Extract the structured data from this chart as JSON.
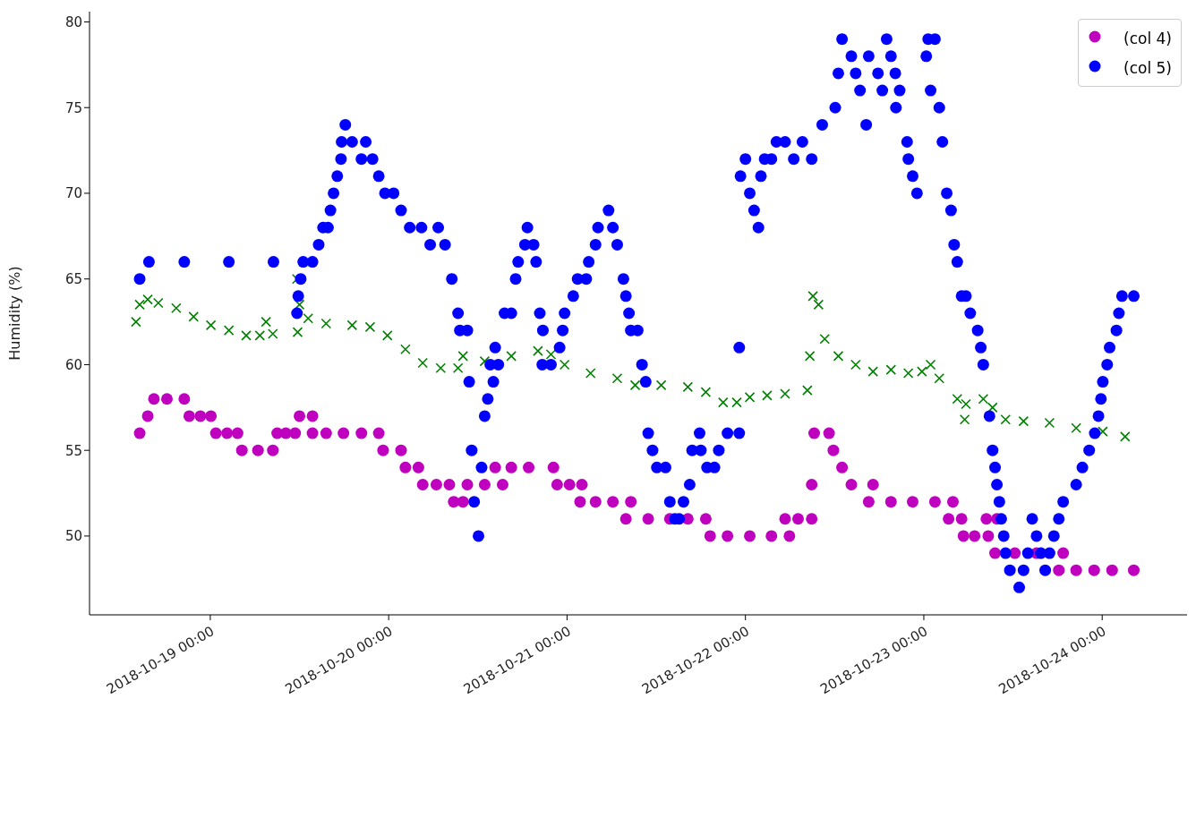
{
  "chart_data": {
    "type": "scatter",
    "ylabel": "Humidity (%)",
    "xlim": [
      "2018-10-18T07:45",
      "2018-10-24T11:25"
    ],
    "xticks": [
      {
        "value": "2018-10-19",
        "label": "2018-10-19 00:00"
      },
      {
        "value": "2018-10-20",
        "label": "2018-10-20 00:00"
      },
      {
        "value": "2018-10-21",
        "label": "2018-10-21 00:00"
      },
      {
        "value": "2018-10-22",
        "label": "2018-10-22 00:00"
      },
      {
        "value": "2018-10-23",
        "label": "2018-10-23 00:00"
      },
      {
        "value": "2018-10-24",
        "label": "2018-10-24 00:00"
      }
    ],
    "ylim": [
      45.4,
      80.6
    ],
    "yticks": [
      50,
      55,
      60,
      65,
      70,
      75,
      80
    ],
    "grid": false,
    "legend": "top right",
    "series": [
      {
        "marker": "cross",
        "color": "#008000",
        "x": [
          "2018-10-18T14:00",
          "2018-10-18T14:30",
          "2018-10-18T15:35",
          "2018-10-18T17:00",
          "2018-10-18T19:25",
          "2018-10-18T21:45",
          "2018-10-19T00:05",
          "2018-10-19T02:30",
          "2018-10-19T04:50",
          "2018-10-19T06:40",
          "2018-10-19T07:30",
          "2018-10-19T08:25",
          "2018-10-19T11:45",
          "2018-10-19T11:40",
          "2018-10-19T12:00",
          "2018-10-19T13:10",
          "2018-10-19T15:35",
          "2018-10-19T19:05",
          "2018-10-19T21:30",
          "2018-10-19T23:50",
          "2018-10-20T02:15",
          "2018-10-20T04:35",
          "2018-10-20T07:00",
          "2018-10-20T09:20",
          "2018-10-20T10:00",
          "2018-10-20T12:55",
          "2018-10-20T16:30",
          "2018-10-20T20:05",
          "2018-10-20T21:50",
          "2018-10-20T23:40",
          "2018-10-21T03:10",
          "2018-10-21T06:45",
          "2018-10-21T09:10",
          "2018-10-21T12:40",
          "2018-10-21T16:15",
          "2018-10-21T18:40",
          "2018-10-21T21:00",
          "2018-10-21T22:50",
          "2018-10-22T00:35",
          "2018-10-22T02:55",
          "2018-10-22T05:20",
          "2018-10-22T08:20",
          "2018-10-22T08:40",
          "2018-10-22T09:05",
          "2018-10-22T09:50",
          "2018-10-22T10:40",
          "2018-10-22T12:30",
          "2018-10-22T14:50",
          "2018-10-22T17:10",
          "2018-10-22T19:35",
          "2018-10-22T21:55",
          "2018-10-22T23:45",
          "2018-10-23T00:55",
          "2018-10-23T02:05",
          "2018-10-23T04:30",
          "2018-10-23T05:30",
          "2018-10-23T05:40",
          "2018-10-23T08:00",
          "2018-10-23T09:15",
          "2018-10-23T11:00",
          "2018-10-23T13:25",
          "2018-10-23T16:55",
          "2018-10-23T20:30",
          "2018-10-24T00:05",
          "2018-10-24T03:05"
        ],
        "values": [
          62.5,
          63.5,
          63.8,
          63.6,
          63.3,
          62.8,
          62.3,
          62.0,
          61.7,
          61.7,
          62.5,
          61.8,
          61.9,
          65,
          63.5,
          62.7,
          62.4,
          62.3,
          62.2,
          61.7,
          60.9,
          60.1,
          59.8,
          59.8,
          60.5,
          60.2,
          60.5,
          60.8,
          60.6,
          60.0,
          59.5,
          59.2,
          58.8,
          58.8,
          58.7,
          58.4,
          57.8,
          57.8,
          58.1,
          58.2,
          58.3,
          58.5,
          60.5,
          64,
          63.5,
          61.5,
          60.5,
          60.0,
          59.6,
          59.7,
          59.5,
          59.6,
          60,
          59.2,
          58,
          56.8,
          57.7,
          58,
          57.5,
          56.8,
          56.7,
          56.6,
          56.3,
          56.1,
          55.8
        ]
      },
      {
        "marker": "circle",
        "name": "(col 4)",
        "color": "#bf00bf",
        "x": [
          "2018-10-18T14:30",
          "2018-10-18T15:35",
          "2018-10-18T16:25",
          "2018-10-18T18:10",
          "2018-10-18T20:30",
          "2018-10-18T21:10",
          "2018-10-18T22:40",
          "2018-10-19T00:05",
          "2018-10-19T00:45",
          "2018-10-19T02:15",
          "2018-10-19T03:40",
          "2018-10-19T04:15",
          "2018-10-19T06:25",
          "2018-10-19T08:25",
          "2018-10-19T09:00",
          "2018-10-19T10:10",
          "2018-10-19T11:25",
          "2018-10-19T12:00",
          "2018-10-19T13:45",
          "2018-10-19T13:45",
          "2018-10-19T15:35",
          "2018-10-19T17:55",
          "2018-10-19T20:20",
          "2018-10-19T22:40",
          "2018-10-19T23:15",
          "2018-10-20T01:40",
          "2018-10-20T02:15",
          "2018-10-20T04:00",
          "2018-10-20T04:35",
          "2018-10-20T06:25",
          "2018-10-20T08:10",
          "2018-10-20T08:45",
          "2018-10-20T10:00",
          "2018-10-20T10:35",
          "2018-10-20T12:55",
          "2018-10-20T15:20",
          "2018-10-20T14:20",
          "2018-10-20T16:30",
          "2018-10-20T18:50",
          "2018-10-20T22:10",
          "2018-10-20T22:40",
          "2018-10-21T00:20",
          "2018-10-21T02:00",
          "2018-10-21T01:45",
          "2018-10-21T03:50",
          "2018-10-21T06:10",
          "2018-10-21T08:35",
          "2018-10-21T07:55",
          "2018-10-21T10:55",
          "2018-10-21T13:50",
          "2018-10-21T16:15",
          "2018-10-21T18:40",
          "2018-10-21T19:15",
          "2018-10-21T21:35",
          "2018-10-22T00:35",
          "2018-10-22T03:30",
          "2018-10-22T05:55",
          "2018-10-22T05:20",
          "2018-10-22T07:05",
          "2018-10-22T08:55",
          "2018-10-22T08:55",
          "2018-10-22T09:15",
          "2018-10-22T11:15",
          "2018-10-22T11:50",
          "2018-10-22T13:00",
          "2018-10-22T14:15",
          "2018-10-22T17:10",
          "2018-10-22T16:35",
          "2018-10-22T19:35",
          "2018-10-22T22:30",
          "2018-10-23T01:30",
          "2018-10-23T03:55",
          "2018-10-23T03:20",
          "2018-10-23T05:05",
          "2018-10-23T05:20",
          "2018-10-23T06:50",
          "2018-10-23T08:40",
          "2018-10-23T08:25",
          "2018-10-23T09:50",
          "2018-10-23T09:35",
          "2018-10-23T12:15",
          "2018-10-23T15:10",
          "2018-10-23T18:45",
          "2018-10-23T18:10",
          "2018-10-23T20:30",
          "2018-10-23T22:55",
          "2018-10-24T01:20",
          "2018-10-24T04:15"
        ],
        "values": [
          56,
          57,
          58,
          58,
          58,
          57,
          57,
          57,
          56,
          56,
          56,
          55,
          55,
          55,
          56,
          56,
          56,
          57,
          57,
          56,
          56,
          56,
          56,
          56,
          55,
          55,
          54,
          54,
          53,
          53,
          53,
          52,
          52,
          53,
          53,
          53,
          54,
          54,
          54,
          54,
          53,
          53,
          53,
          52,
          52,
          52,
          52,
          51,
          51,
          51,
          51,
          51,
          50,
          50,
          50,
          50,
          50,
          51,
          51,
          51,
          53,
          56,
          56,
          55,
          54,
          53,
          53,
          52,
          52,
          52,
          52,
          52,
          51,
          51,
          50,
          50,
          50,
          51,
          51,
          49,
          49,
          49,
          49,
          48,
          48,
          48,
          48,
          48
        ]
      },
      {
        "marker": "circle",
        "name": "(col 5)",
        "color": "#0000ff",
        "x": [
          "2018-10-18T14:30",
          "2018-10-18T15:45",
          "2018-10-18T20:30",
          "2018-10-19T02:30",
          "2018-10-19T08:30",
          "2018-10-19T12:30",
          "2018-10-19T11:40",
          "2018-10-19T11:50",
          "2018-10-19T12:10",
          "2018-10-19T13:45",
          "2018-10-19T14:35",
          "2018-10-19T15:10",
          "2018-10-19T15:50",
          "2018-10-19T16:10",
          "2018-10-19T16:35",
          "2018-10-19T17:05",
          "2018-10-19T17:35",
          "2018-10-19T18:10",
          "2018-10-19T17:40",
          "2018-10-19T19:05",
          "2018-10-19T20:20",
          "2018-10-19T20:55",
          "2018-10-19T21:50",
          "2018-10-19T22:40",
          "2018-10-19T23:30",
          "2018-10-20T00:40",
          "2018-10-20T01:40",
          "2018-10-20T02:50",
          "2018-10-20T04:25",
          "2018-10-20T05:35",
          "2018-10-20T06:40",
          "2018-10-20T07:35",
          "2018-10-20T08:30",
          "2018-10-20T09:20",
          "2018-10-20T09:35",
          "2018-10-20T10:35",
          "2018-10-20T10:50",
          "2018-10-20T11:10",
          "2018-10-20T11:30",
          "2018-10-20T12:05",
          "2018-10-20T12:30",
          "2018-10-20T12:55",
          "2018-10-20T13:20",
          "2018-10-20T13:40",
          "2018-10-20T14:05",
          "2018-10-20T14:20",
          "2018-10-20T14:45",
          "2018-10-20T15:35",
          "2018-10-20T16:30",
          "2018-10-20T17:05",
          "2018-10-20T17:25",
          "2018-10-20T18:20",
          "2018-10-20T18:40",
          "2018-10-20T19:30",
          "2018-10-20T19:50",
          "2018-10-20T20:20",
          "2018-10-20T20:45",
          "2018-10-20T20:40",
          "2018-10-20T21:50",
          "2018-10-20T23:00",
          "2018-10-20T23:25",
          "2018-10-20T23:40",
          "2018-10-21T00:50",
          "2018-10-21T01:25",
          "2018-10-21T02:35",
          "2018-10-21T02:55",
          "2018-10-21T03:50",
          "2018-10-21T04:10",
          "2018-10-21T05:35",
          "2018-10-21T06:10",
          "2018-10-21T06:45",
          "2018-10-21T07:35",
          "2018-10-21T07:55",
          "2018-10-21T08:20",
          "2018-10-21T08:35",
          "2018-10-21T09:30",
          "2018-10-21T10:05",
          "2018-10-21T10:35",
          "2018-10-21T10:55",
          "2018-10-21T11:30",
          "2018-10-21T12:05",
          "2018-10-21T13:15",
          "2018-10-21T13:50",
          "2018-10-21T14:30",
          "2018-10-21T15:05",
          "2018-10-21T15:40",
          "2018-10-21T16:30",
          "2018-10-21T16:50",
          "2018-10-21T17:50",
          "2018-10-21T18:00",
          "2018-10-21T18:50",
          "2018-10-21T19:50",
          "2018-10-21T20:25",
          "2018-10-21T21:35",
          "2018-10-21T23:10",
          "2018-10-21T23:10",
          "2018-10-21T23:20",
          "2018-10-22T00:00",
          "2018-10-22T00:35",
          "2018-10-22T01:10",
          "2018-10-22T01:45",
          "2018-10-22T02:05",
          "2018-10-22T02:35",
          "2018-10-22T03:30",
          "2018-10-22T04:10",
          "2018-10-22T05:20",
          "2018-10-22T06:30",
          "2018-10-22T07:40",
          "2018-10-22T08:55",
          "2018-10-22T10:20",
          "2018-10-22T12:05",
          "2018-10-22T12:30",
          "2018-10-22T13:00",
          "2018-10-22T14:15",
          "2018-10-22T14:50",
          "2018-10-22T15:25",
          "2018-10-22T16:15",
          "2018-10-22T16:35",
          "2018-10-22T17:50",
          "2018-10-22T18:25",
          "2018-10-22T19:00",
          "2018-10-22T19:35",
          "2018-10-22T20:10",
          "2018-10-22T20:45",
          "2018-10-22T20:15",
          "2018-10-22T21:45",
          "2018-10-22T21:55",
          "2018-10-22T22:30",
          "2018-10-22T23:05",
          "2018-10-23T00:20",
          "2018-10-23T00:35",
          "2018-10-23T00:55",
          "2018-10-23T01:30",
          "2018-10-23T02:05",
          "2018-10-23T02:30",
          "2018-10-23T03:05",
          "2018-10-23T03:40",
          "2018-10-23T04:05",
          "2018-10-23T04:30",
          "2018-10-23T05:05",
          "2018-10-23T05:40",
          "2018-10-23T06:15",
          "2018-10-23T07:15",
          "2018-10-23T07:40",
          "2018-10-23T08:00",
          "2018-10-23T08:50",
          "2018-10-23T09:15",
          "2018-10-23T09:35",
          "2018-10-23T09:50",
          "2018-10-23T10:10",
          "2018-10-23T10:25",
          "2018-10-23T10:45",
          "2018-10-23T11:00",
          "2018-10-23T11:35",
          "2018-10-23T12:50",
          "2018-10-23T13:25",
          "2018-10-23T14:00",
          "2018-10-23T14:35",
          "2018-10-23T15:10",
          "2018-10-23T15:45",
          "2018-10-23T16:20",
          "2018-10-23T16:55",
          "2018-10-23T17:30",
          "2018-10-23T18:10",
          "2018-10-23T18:45",
          "2018-10-23T20:30",
          "2018-10-23T21:20",
          "2018-10-23T22:15",
          "2018-10-23T23:00",
          "2018-10-23T23:30",
          "2018-10-23T23:50",
          "2018-10-24T00:05",
          "2018-10-24T00:40",
          "2018-10-24T01:00",
          "2018-10-24T01:55",
          "2018-10-24T02:15",
          "2018-10-24T02:40",
          "2018-10-24T04:15"
        ],
        "values": [
          65,
          66,
          66,
          66,
          66,
          66,
          63,
          64,
          65,
          66,
          67,
          68,
          68,
          69,
          70,
          71,
          72,
          74,
          73,
          73,
          72,
          73,
          72,
          71,
          70,
          70,
          69,
          68,
          68,
          67,
          68,
          67,
          65,
          63,
          62,
          62,
          59,
          55,
          52,
          50,
          54,
          57,
          58,
          60,
          59,
          61,
          60,
          63,
          63,
          65,
          66,
          67,
          68,
          67,
          66,
          63,
          62,
          60,
          60,
          61,
          62,
          63,
          64,
          65,
          65,
          66,
          67,
          68,
          69,
          68,
          67,
          65,
          64,
          63,
          62,
          62,
          60,
          59,
          56,
          55,
          54,
          54,
          52,
          51,
          51,
          52,
          53,
          55,
          56,
          55,
          54,
          54,
          55,
          56,
          56,
          61,
          71,
          72,
          70,
          69,
          68,
          71,
          72,
          72,
          73,
          73,
          72,
          73,
          72,
          74,
          75,
          77,
          79,
          78,
          77,
          76,
          74,
          78,
          77,
          76,
          79,
          78,
          77,
          76,
          75,
          73,
          72,
          71,
          70,
          78,
          79,
          76,
          79,
          75,
          73,
          70,
          69,
          67,
          66,
          64,
          64,
          63,
          62,
          61,
          60,
          57,
          55,
          54,
          53,
          52,
          51,
          50,
          49,
          48,
          47,
          48,
          49,
          51,
          50,
          49,
          48,
          49,
          50,
          51,
          52,
          53,
          54,
          55,
          56,
          57,
          58,
          59,
          60,
          61,
          62,
          63,
          64,
          64
        ]
      }
    ]
  }
}
